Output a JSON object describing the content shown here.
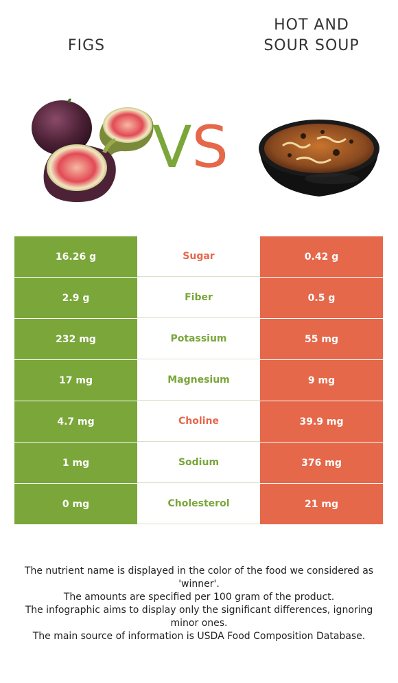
{
  "header": {
    "left_title": "FIGS",
    "right_title_line1": "HOT AND",
    "right_title_line2": "SOUR SOUP",
    "vs_v": "V",
    "vs_s": "S"
  },
  "colors": {
    "winner_left": "#7aa63a",
    "winner_right": "#e5684a"
  },
  "comparison": [
    {
      "left": "16.26 g",
      "nutrient": "Sugar",
      "right": "0.42 g",
      "winner": "right"
    },
    {
      "left": "2.9 g",
      "nutrient": "Fiber",
      "right": "0.5 g",
      "winner": "left"
    },
    {
      "left": "232 mg",
      "nutrient": "Potassium",
      "right": "55 mg",
      "winner": "left"
    },
    {
      "left": "17 mg",
      "nutrient": "Magnesium",
      "right": "9 mg",
      "winner": "left"
    },
    {
      "left": "4.7 mg",
      "nutrient": "Choline",
      "right": "39.9 mg",
      "winner": "right"
    },
    {
      "left": "1 mg",
      "nutrient": "Sodium",
      "right": "376 mg",
      "winner": "left"
    },
    {
      "left": "0 mg",
      "nutrient": "Cholesterol",
      "right": "21 mg",
      "winner": "left"
    }
  ],
  "footer": {
    "line1": "The nutrient name is displayed in the color of the food we considered as 'winner'.",
    "line2": "The amounts are specified per 100 gram of the product.",
    "line3": "The infographic aims to display only the significant differences, ignoring minor ones.",
    "line4": "The main source of information is USDA Food Composition Database."
  }
}
